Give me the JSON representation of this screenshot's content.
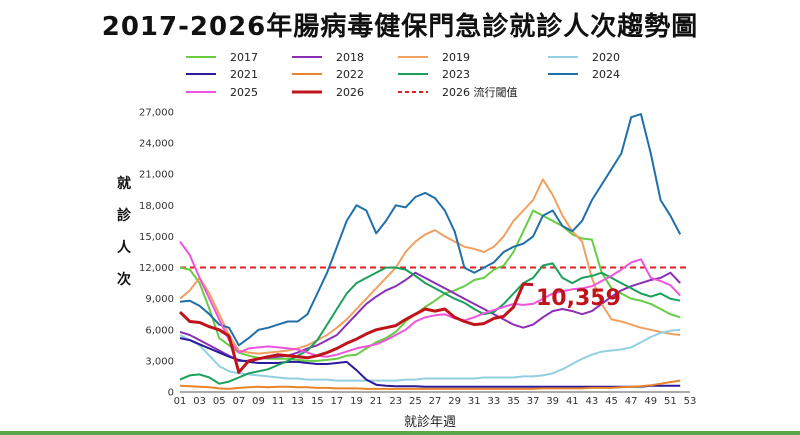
{
  "title": "2017-2026年腸病毒健保門急診就診人次趨勢圖",
  "chart_data": {
    "type": "line",
    "xlabel": "就診年週",
    "ylabel": "就診人次",
    "ylim": [
      0,
      27000
    ],
    "yticks": [
      "0",
      "3,000",
      "6,000",
      "9,000",
      "12,000",
      "15,000",
      "18,000",
      "21,000",
      "24,000",
      "27,000"
    ],
    "xticks": [
      "01",
      "03",
      "05",
      "07",
      "09",
      "11",
      "13",
      "15",
      "17",
      "19",
      "21",
      "23",
      "25",
      "27",
      "29",
      "31",
      "33",
      "35",
      "37",
      "39",
      "41",
      "43",
      "45",
      "47",
      "49",
      "51",
      "53"
    ],
    "threshold": {
      "name": "2026 流行閾值",
      "value": 12000,
      "color": "#e02020"
    },
    "annotation": {
      "text": "10,359",
      "week": 37,
      "value": 10359,
      "color": "#c0141c"
    },
    "legend_order": [
      "2017",
      "2018",
      "2019",
      "2020",
      "2021",
      "2022",
      "2023",
      "2024",
      "2025",
      "2026",
      "2026 流行閾值"
    ],
    "series": [
      {
        "name": "2017",
        "color": "#66cc44",
        "x": [
          1,
          2,
          3,
          4,
          5,
          6,
          7,
          8,
          9,
          10,
          11,
          12,
          13,
          14,
          15,
          16,
          17,
          18,
          19,
          20,
          21,
          22,
          23,
          24,
          25,
          26,
          27,
          28,
          29,
          30,
          31,
          32,
          33,
          34,
          35,
          36,
          37,
          38,
          39,
          40,
          41,
          42,
          43,
          44,
          45,
          46,
          47,
          48,
          49,
          50,
          51,
          52
        ],
        "values": [
          12000,
          11800,
          10500,
          8000,
          5200,
          4500,
          3800,
          3500,
          3300,
          3200,
          3200,
          3200,
          3100,
          3000,
          3000,
          3100,
          3200,
          3500,
          3600,
          4200,
          4800,
          5200,
          5800,
          6800,
          7500,
          8200,
          8800,
          9500,
          9800,
          10200,
          10800,
          11000,
          11800,
          12200,
          13500,
          15500,
          17500,
          17000,
          16500,
          16000,
          15200,
          14800,
          14700,
          11500,
          10000,
          9500,
          9000,
          8800,
          8500,
          8000,
          7500,
          7200
        ]
      },
      {
        "name": "2018",
        "color": "#8b2fb5",
        "x": [
          1,
          2,
          3,
          4,
          5,
          6,
          7,
          8,
          9,
          10,
          11,
          12,
          13,
          14,
          15,
          16,
          17,
          18,
          19,
          20,
          21,
          22,
          23,
          24,
          25,
          26,
          27,
          28,
          29,
          30,
          31,
          32,
          33,
          34,
          35,
          36,
          37,
          38,
          39,
          40,
          41,
          42,
          43,
          44,
          45,
          46,
          47,
          48,
          49,
          50,
          51,
          52
        ],
        "values": [
          5800,
          5500,
          5000,
          4500,
          4000,
          3500,
          3000,
          3000,
          3200,
          3300,
          3400,
          3500,
          3800,
          4200,
          4500,
          5000,
          5500,
          6500,
          7500,
          8500,
          9200,
          9800,
          10200,
          10800,
          11500,
          11000,
          10500,
          10000,
          9500,
          9000,
          8500,
          8000,
          7500,
          7000,
          6500,
          6200,
          6500,
          7200,
          7800,
          8000,
          7800,
          7500,
          7800,
          8500,
          9200,
          9800,
          10200,
          10500,
          10800,
          11000,
          11500,
          10500
        ]
      },
      {
        "name": "2019",
        "color": "#f0a060",
        "x": [
          1,
          2,
          3,
          4,
          5,
          6,
          7,
          8,
          9,
          10,
          11,
          12,
          13,
          14,
          15,
          16,
          17,
          18,
          19,
          20,
          21,
          22,
          23,
          24,
          25,
          26,
          27,
          28,
          29,
          30,
          31,
          32,
          33,
          34,
          35,
          36,
          37,
          38,
          39,
          40,
          41,
          42,
          43,
          44,
          45,
          46,
          47,
          48,
          49,
          50,
          51,
          52
        ],
        "values": [
          9000,
          9800,
          11000,
          9500,
          7500,
          5500,
          4000,
          3800,
          3700,
          3800,
          3900,
          4000,
          4200,
          4500,
          5000,
          5500,
          6200,
          7000,
          8000,
          9000,
          10000,
          11000,
          12000,
          13500,
          14500,
          15200,
          15600,
          15000,
          14500,
          14000,
          13800,
          13500,
          14000,
          15000,
          16500,
          17500,
          18500,
          20500,
          19000,
          17000,
          15500,
          14500,
          11000,
          8500,
          7000,
          6800,
          6500,
          6200,
          6000,
          5800,
          5600,
          5500
        ]
      },
      {
        "name": "2020",
        "color": "#92cfe0",
        "x": [
          1,
          2,
          3,
          4,
          5,
          6,
          7,
          8,
          9,
          10,
          11,
          12,
          13,
          14,
          15,
          16,
          17,
          18,
          19,
          20,
          21,
          22,
          23,
          24,
          25,
          26,
          27,
          28,
          29,
          30,
          31,
          32,
          33,
          34,
          35,
          36,
          37,
          38,
          39,
          40,
          41,
          42,
          43,
          44,
          45,
          46,
          47,
          48,
          49,
          50,
          51,
          52
        ],
        "values": [
          5500,
          5000,
          4500,
          3500,
          2500,
          2000,
          1800,
          1700,
          1600,
          1500,
          1400,
          1300,
          1300,
          1200,
          1200,
          1200,
          1100,
          1100,
          1100,
          1100,
          1100,
          1100,
          1100,
          1200,
          1200,
          1300,
          1300,
          1300,
          1300,
          1300,
          1300,
          1400,
          1400,
          1400,
          1400,
          1500,
          1500,
          1600,
          1800,
          2200,
          2700,
          3200,
          3600,
          3900,
          4000,
          4100,
          4300,
          4800,
          5300,
          5700,
          5900,
          6000
        ]
      },
      {
        "name": "2021",
        "color": "#2a1a9c",
        "x": [
          1,
          2,
          3,
          4,
          5,
          6,
          7,
          8,
          9,
          10,
          11,
          12,
          13,
          14,
          15,
          16,
          17,
          18,
          19,
          20,
          21,
          22,
          23,
          24,
          25,
          26,
          27,
          28,
          29,
          30,
          31,
          32,
          33,
          34,
          35,
          36,
          37,
          38,
          39,
          40,
          41,
          42,
          43,
          44,
          45,
          46,
          47,
          48,
          49,
          50,
          51,
          52
        ],
        "values": [
          5200,
          5000,
          4600,
          4200,
          3800,
          3400,
          3100,
          2900,
          2800,
          2800,
          2800,
          2900,
          2900,
          2800,
          2700,
          2700,
          2800,
          2900,
          2100,
          1200,
          700,
          600,
          550,
          550,
          550,
          500,
          500,
          500,
          500,
          500,
          500,
          500,
          500,
          500,
          500,
          500,
          500,
          500,
          500,
          500,
          500,
          500,
          500,
          500,
          500,
          500,
          500,
          500,
          600,
          600,
          600,
          600
        ]
      },
      {
        "name": "2022",
        "color": "#e8842c",
        "x": [
          1,
          2,
          3,
          4,
          5,
          6,
          7,
          8,
          9,
          10,
          11,
          12,
          13,
          14,
          15,
          16,
          17,
          18,
          19,
          20,
          21,
          22,
          23,
          24,
          25,
          26,
          27,
          28,
          29,
          30,
          31,
          32,
          33,
          34,
          35,
          36,
          37,
          38,
          39,
          40,
          41,
          42,
          43,
          44,
          45,
          46,
          47,
          48,
          49,
          50,
          51,
          52
        ],
        "values": [
          600,
          550,
          500,
          450,
          350,
          300,
          400,
          450,
          500,
          450,
          500,
          500,
          450,
          450,
          400,
          400,
          350,
          350,
          350,
          300,
          300,
          300,
          300,
          300,
          300,
          300,
          300,
          300,
          300,
          300,
          300,
          300,
          300,
          300,
          300,
          300,
          300,
          350,
          350,
          350,
          350,
          350,
          400,
          400,
          400,
          450,
          500,
          550,
          650,
          800,
          950,
          1100
        ]
      },
      {
        "name": "2023",
        "color": "#1aa05a",
        "x": [
          1,
          2,
          3,
          4,
          5,
          6,
          7,
          8,
          9,
          10,
          11,
          12,
          13,
          14,
          15,
          16,
          17,
          18,
          19,
          20,
          21,
          22,
          23,
          24,
          25,
          26,
          27,
          28,
          29,
          30,
          31,
          32,
          33,
          34,
          35,
          36,
          37,
          38,
          39,
          40,
          41,
          42,
          43,
          44,
          45,
          46,
          47,
          48,
          49,
          50,
          51,
          52
        ],
        "values": [
          1200,
          1600,
          1700,
          1400,
          800,
          1000,
          1400,
          1800,
          2000,
          2200,
          2600,
          3000,
          3500,
          4000,
          5000,
          6500,
          8000,
          9500,
          10500,
          11000,
          11500,
          12000,
          12000,
          11800,
          11200,
          10500,
          10000,
          9500,
          9000,
          8600,
          8000,
          7500,
          7700,
          8500,
          9500,
          10500,
          11000,
          12200,
          12400,
          11000,
          10500,
          11000,
          11200,
          11500,
          11000,
          10500,
          10000,
          9500,
          9200,
          9500,
          9000,
          8800
        ]
      },
      {
        "name": "2024",
        "color": "#1f6fa8",
        "x": [
          1,
          2,
          3,
          4,
          5,
          6,
          7,
          8,
          9,
          10,
          11,
          12,
          13,
          14,
          15,
          16,
          17,
          18,
          19,
          20,
          21,
          22,
          23,
          24,
          25,
          26,
          27,
          28,
          29,
          30,
          31,
          32,
          33,
          34,
          35,
          36,
          37,
          38,
          39,
          40,
          41,
          42,
          43,
          44,
          45,
          46,
          47,
          48,
          49,
          50,
          51,
          52
        ],
        "values": [
          8700,
          8800,
          8300,
          7500,
          6500,
          6200,
          4500,
          5200,
          6000,
          6200,
          6500,
          6800,
          6800,
          7500,
          9500,
          11500,
          14000,
          16500,
          18000,
          17500,
          15300,
          16500,
          18000,
          17800,
          18800,
          19200,
          18700,
          17500,
          15500,
          12000,
          11500,
          12000,
          12500,
          13500,
          14000,
          14300,
          15000,
          17000,
          17500,
          16000,
          15500,
          16500,
          18500,
          20000,
          21500,
          23000,
          26500,
          26800,
          23000,
          18500,
          17000,
          15200
        ]
      },
      {
        "name": "2025",
        "color": "#ee55dd",
        "x": [
          1,
          2,
          3,
          4,
          5,
          6,
          7,
          8,
          9,
          10,
          11,
          12,
          13,
          14,
          15,
          16,
          17,
          18,
          19,
          20,
          21,
          22,
          23,
          24,
          25,
          26,
          27,
          28,
          29,
          30,
          31,
          32,
          33,
          34,
          35,
          36,
          37,
          38,
          39,
          40,
          41,
          42,
          43,
          44,
          45,
          46,
          47,
          48,
          49,
          50,
          51,
          52
        ],
        "values": [
          14500,
          13200,
          11000,
          9000,
          7000,
          5000,
          3800,
          4200,
          4300,
          4400,
          4300,
          4200,
          4100,
          3800,
          3500,
          3400,
          3600,
          3900,
          4200,
          4400,
          4600,
          5000,
          5500,
          6000,
          6800,
          7200,
          7400,
          7500,
          7100,
          6900,
          7200,
          7600,
          7900,
          8200,
          8500,
          8400,
          8500,
          9000,
          9500,
          9700,
          9900,
          10000,
          10200,
          10700,
          11200,
          11800,
          12500,
          12800,
          11000,
          10700,
          10300,
          9300
        ]
      },
      {
        "name": "2026",
        "color": "#c0141c",
        "x": [
          1,
          2,
          3,
          4,
          5,
          6,
          7,
          8,
          9,
          10,
          11,
          12,
          13,
          14,
          15,
          16,
          17,
          18,
          19,
          20,
          21,
          22,
          23,
          24,
          25,
          26,
          27,
          28,
          29,
          30,
          31,
          32,
          33,
          34,
          35,
          36,
          37
        ],
        "values": [
          7700,
          6800,
          6700,
          6300,
          6000,
          5400,
          1900,
          3000,
          3200,
          3400,
          3600,
          3500,
          3400,
          3300,
          3500,
          3800,
          4200,
          4700,
          5100,
          5600,
          6000,
          6200,
          6400,
          7000,
          7500,
          8000,
          7800,
          8000,
          7200,
          6800,
          6500,
          6600,
          7100,
          7300,
          8200,
          10400,
          10359
        ]
      }
    ]
  }
}
